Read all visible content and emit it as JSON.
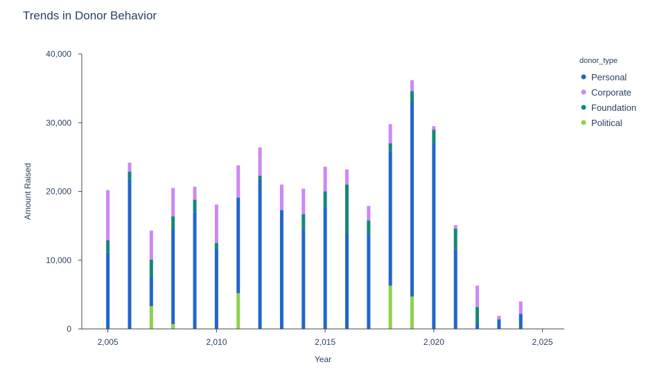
{
  "title": "Trends in Donor Behavior",
  "chart_data": {
    "type": "bar",
    "stacked": true,
    "title": "Trends in Donor Behavior",
    "xlabel": "Year",
    "ylabel": "Amount Raised",
    "xlim": [
      2003.8,
      2026
    ],
    "ylim": [
      0,
      40000
    ],
    "x_ticks": [
      2005,
      2010,
      2015,
      2020,
      2025
    ],
    "x_tick_labels": [
      "2,005",
      "2,010",
      "2,015",
      "2,020",
      "2,025"
    ],
    "y_ticks": [
      0,
      10000,
      20000,
      30000,
      40000
    ],
    "y_tick_labels": [
      "0",
      "10,000",
      "20,000",
      "30,000",
      "40,000"
    ],
    "grid": false,
    "legend": {
      "title": "donor_type",
      "position": "right"
    },
    "x": [
      2005,
      2006,
      2007,
      2008,
      2009,
      2010,
      2011,
      2012,
      2013,
      2014,
      2015,
      2016,
      2017,
      2018,
      2019,
      2020,
      2021,
      2022,
      2023,
      2024
    ],
    "series": [
      {
        "name": "Political",
        "color": "#8fd14f",
        "values": [
          0,
          0,
          3300,
          700,
          0,
          0,
          5200,
          0,
          0,
          0,
          0,
          0,
          0,
          6300,
          4700,
          0,
          0,
          0,
          0,
          0
        ]
      },
      {
        "name": "Personal",
        "color": "#2266cc",
        "values": [
          11100,
          21800,
          4300,
          13900,
          17000,
          11700,
          13900,
          21800,
          17300,
          14500,
          17800,
          13900,
          13800,
          19500,
          28400,
          27000,
          11600,
          700,
          1400,
          2200
        ]
      },
      {
        "name": "Foundation",
        "color": "#13897a",
        "values": [
          1800,
          1100,
          2500,
          1800,
          1800,
          800,
          0,
          500,
          0,
          2200,
          2200,
          7100,
          2000,
          1200,
          1500,
          2000,
          3000,
          2500,
          0,
          0
        ]
      },
      {
        "name": "Corporate",
        "color": "#cc88f5",
        "values": [
          7300,
          1300,
          4200,
          4100,
          1900,
          5600,
          4700,
          4100,
          3700,
          3700,
          3600,
          2200,
          2100,
          2800,
          1600,
          500,
          500,
          3100,
          500,
          1800
        ]
      }
    ],
    "legend_order": [
      "Personal",
      "Corporate",
      "Foundation",
      "Political"
    ]
  }
}
